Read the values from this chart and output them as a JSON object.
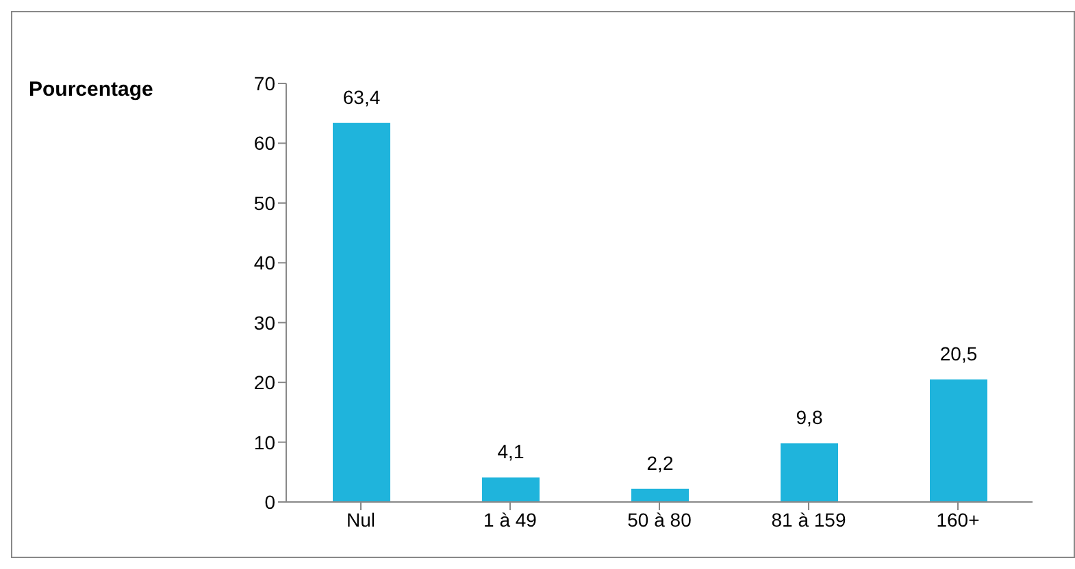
{
  "chart_data": {
    "type": "bar",
    "ylabel": "Pourcentage",
    "categories": [
      "Nul",
      "1 à 49",
      "50 à 80",
      "81 à 159",
      "160+"
    ],
    "values": [
      63.4,
      4.1,
      2.2,
      9.8,
      20.5
    ],
    "value_labels": [
      "63,4",
      "4,1",
      "2,2",
      "9,8",
      "20,5"
    ],
    "color": "#1fb4dc",
    "ylim": [
      0,
      70
    ],
    "yticks": [
      0,
      10,
      20,
      30,
      40,
      50,
      60,
      70
    ],
    "grid": false,
    "legend": false
  }
}
